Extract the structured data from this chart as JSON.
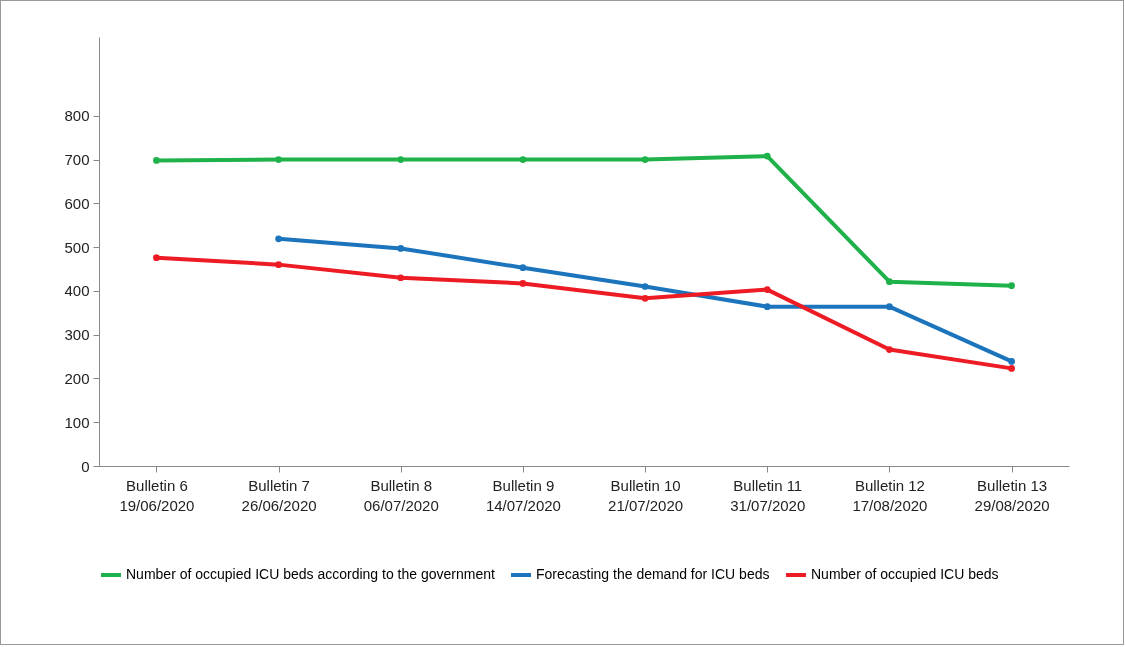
{
  "chart_data": {
    "type": "line",
    "categories": [
      "Bulletin 6\n19/06/2020",
      "Bulletin 7\n26/06/2020",
      "Bulletin 8\n06/07/2020",
      "Bulletin 9\n14/07/2020",
      "Bulletin 10\n21/07/2020",
      "Bulletin 11\n31/07/2020",
      "Bulletin 12\n17/08/2020",
      "Bulletin 13\n29/08/2020"
    ],
    "series": [
      {
        "name": "Number of occupied ICU beds according to the government",
        "color": "#1fb24a",
        "values": [
          698,
          700,
          700,
          700,
          700,
          708,
          421,
          412
        ]
      },
      {
        "name": "Forecasting the demand for ICU beds",
        "color": "#1c75bc",
        "values": [
          null,
          519,
          497,
          453,
          410,
          364,
          364,
          239
        ]
      },
      {
        "name": "Number of occupied ICU beds",
        "color": "#ed1c24",
        "values": [
          476,
          460,
          430,
          417,
          383,
          403,
          266,
          223
        ]
      }
    ],
    "ylim": [
      0,
      980
    ],
    "yticks": [
      0,
      100,
      200,
      300,
      400,
      500,
      600,
      700,
      800
    ],
    "grid": false,
    "legend": "bottom",
    "marker": "circle",
    "line_style": "solid"
  }
}
